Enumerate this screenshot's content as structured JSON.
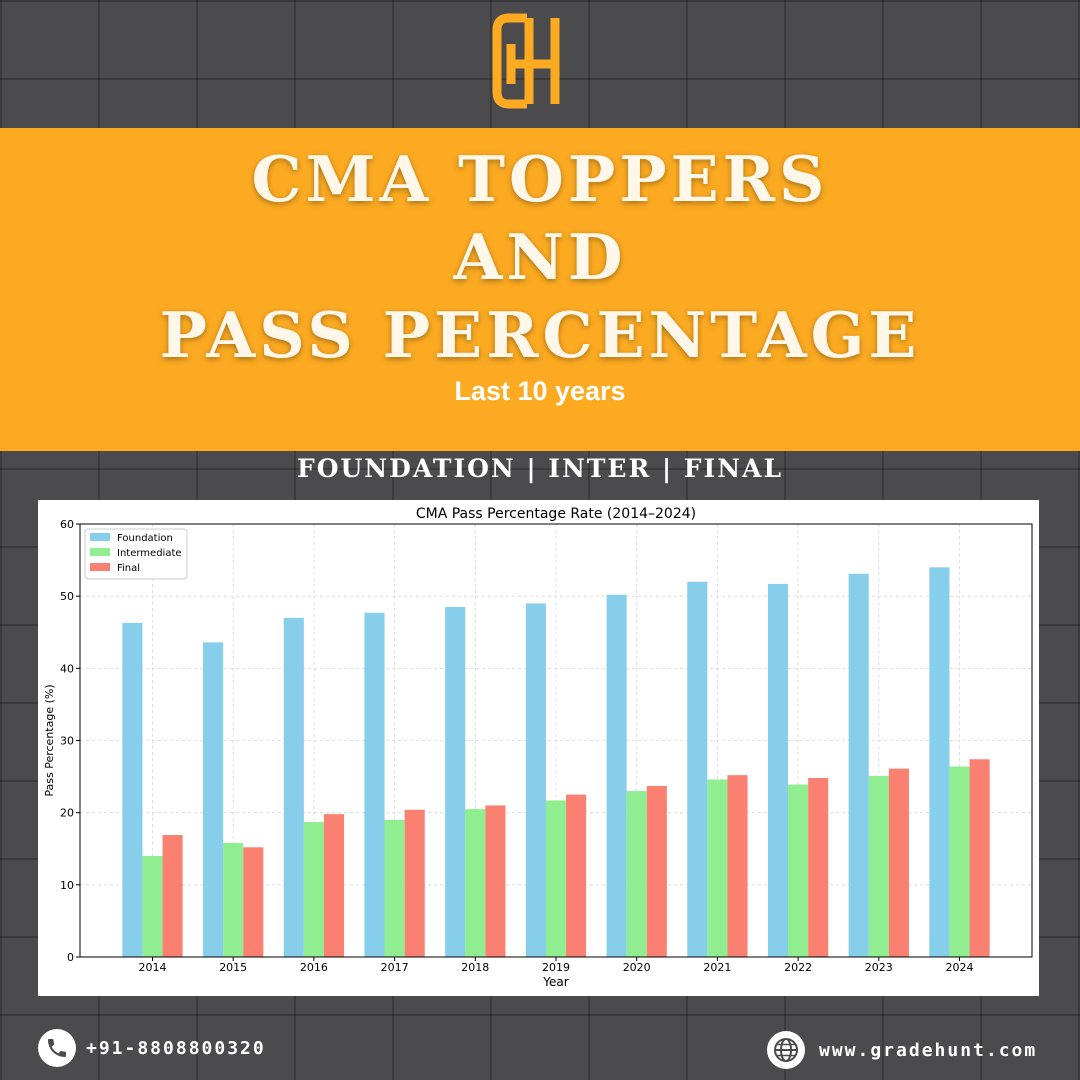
{
  "header": {
    "title_line1": "CMA TOPPERS",
    "title_line2": "AND",
    "title_line3": "PASS PERCENTAGE",
    "subtitle": "Last 10 years",
    "levels": "FOUNDATION | INTER | FINAL"
  },
  "colors": {
    "banner": "#fcaa22",
    "background": "#4b4b4d",
    "foundation": "#87ceeb",
    "intermediate": "#90ee90",
    "final": "#fa8072"
  },
  "footer": {
    "phone_icon": "phone-icon",
    "phone": "+91-8808800320",
    "web_icon": "globe-icon",
    "website": "www.gradehunt.com"
  },
  "chart_data": {
    "type": "bar",
    "title": "CMA Pass Percentage Rate (2014–2024)",
    "xlabel": "Year",
    "ylabel": "Pass Percentage (%)",
    "ylim": [
      0,
      60
    ],
    "yticks": [
      0,
      10,
      20,
      30,
      40,
      50,
      60
    ],
    "grid": true,
    "legend_position": "top-left",
    "categories": [
      "2014",
      "2015",
      "2016",
      "2017",
      "2018",
      "2019",
      "2020",
      "2021",
      "2022",
      "2023",
      "2024"
    ],
    "series": [
      {
        "name": "Foundation",
        "color": "#87ceeb",
        "values": [
          46.3,
          43.6,
          47.0,
          47.7,
          48.5,
          49.0,
          50.2,
          52.0,
          51.7,
          53.1,
          54.0
        ]
      },
      {
        "name": "Intermediate",
        "color": "#90ee90",
        "values": [
          14.0,
          15.8,
          18.7,
          19.0,
          20.5,
          21.7,
          23.0,
          24.6,
          23.9,
          25.1,
          26.4
        ]
      },
      {
        "name": "Final",
        "color": "#fa8072",
        "values": [
          16.9,
          15.2,
          19.8,
          20.4,
          21.0,
          22.5,
          23.7,
          25.2,
          24.8,
          26.1,
          27.4
        ]
      }
    ]
  }
}
